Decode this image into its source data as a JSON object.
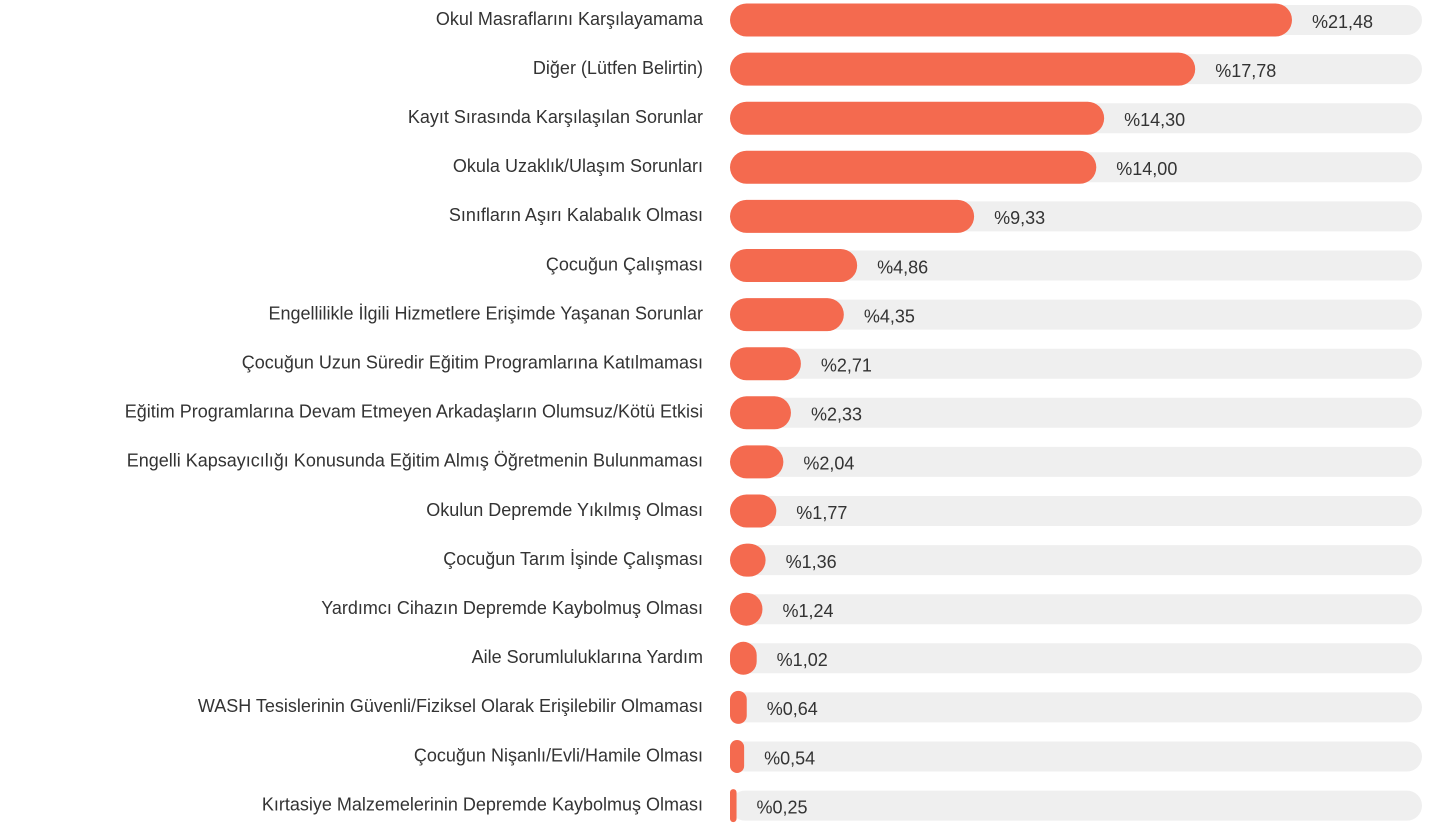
{
  "chart_data": {
    "type": "hbar",
    "color": "#f46a4f",
    "categories": [
      "Okul Masraflarını Karşılayamama",
      "Diğer (Lütfen Belirtin)",
      "Kayıt Sırasında Karşılaşılan Sorunlar",
      "Okula Uzaklık/Ulaşım Sorunları",
      "Sınıfların Aşırı Kalabalık Olması",
      "Çocuğun Çalışması",
      "Engellilikle İlgili Hizmetlere Erişimde Yaşanan Sorunlar",
      "Çocuğun Uzun Süredir Eğitim Programlarına Katılmaması",
      "Eğitim Programlarına Devam Etmeyen Arkadaşların Olumsuz/Kötü Etkisi",
      "Engelli Kapsayıcılığı Konusunda Eğitim Almış Öğretmenin Bulunmaması",
      "Okulun Depremde Yıkılmış Olması",
      "Çocuğun Tarım İşinde Çalışması",
      "Yardımcı Cihazın Depremde Kaybolmuş Olması",
      "Aile Sorumluluklarına Yardım",
      "WASH Tesislerinin Güvenli/Fiziksel Olarak Erişilebilir Olmaması",
      "Çocuğun Nişanlı/Evli/Hamile Olması",
      "Kırtasiye Malzemelerinin Depremde Kaybolmuş Olması"
    ],
    "values": [
      21.48,
      17.78,
      14.3,
      14.0,
      9.33,
      4.86,
      4.35,
      2.71,
      2.33,
      2.04,
      1.77,
      1.36,
      1.24,
      1.02,
      0.64,
      0.54,
      0.25
    ],
    "value_labels": [
      "%21,48",
      "%17,78",
      "%14,30",
      "%14,00",
      "%9,33",
      "%4,86",
      "%4,35",
      "%2,71",
      "%2,33",
      "%2,04",
      "%1,77",
      "%1,36",
      "%1,24",
      "%1,02",
      "%0,64",
      "%0,54",
      "%0,25"
    ]
  }
}
